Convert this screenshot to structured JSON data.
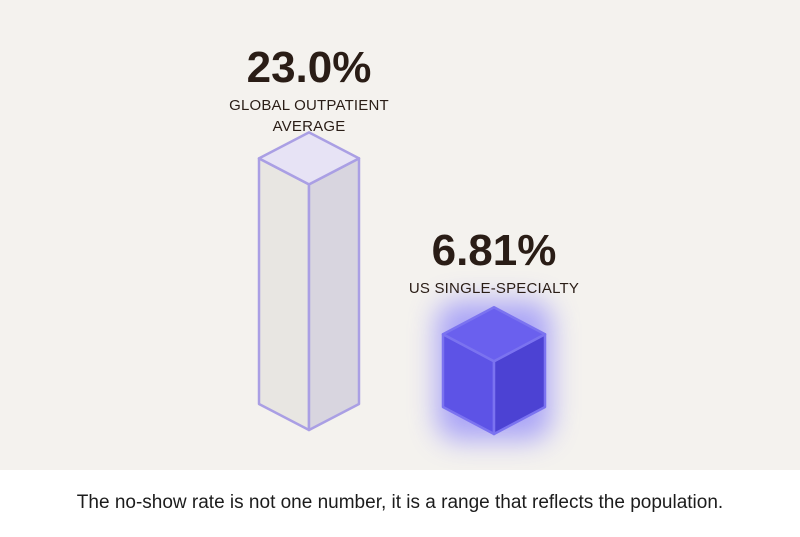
{
  "chart_data": {
    "type": "bar",
    "categories": [
      "GLOBAL OUTPATIENT AVERAGE",
      "US SINGLE-SPECIALTY"
    ],
    "values": [
      23.0,
      6.81
    ],
    "value_labels": [
      "23.0%",
      "6.81%"
    ],
    "category_label_lines": [
      [
        "GLOBAL OUTPATIENT",
        "AVERAGE"
      ],
      [
        "US SINGLE-SPECIALTY"
      ]
    ],
    "unit": "%",
    "title": "",
    "xlabel": "",
    "ylabel": "",
    "grid": false,
    "style": "3d-isometric-columns",
    "colors": {
      "background": "#f4f2ee",
      "global_top": "#e7e3f5",
      "global_front": "#e8e6e2",
      "global_side": "#d8d5df",
      "global_edge": "#aa9fe4",
      "us_top": "#6a60ee",
      "us_front": "#5d53e6",
      "us_side": "#4c42d3",
      "us_edge": "#7b73f0",
      "us_glow": "#6c63ff",
      "text": "#2a1d16"
    }
  },
  "caption": "The no-show rate is not one number, it is a range that reflects the population."
}
